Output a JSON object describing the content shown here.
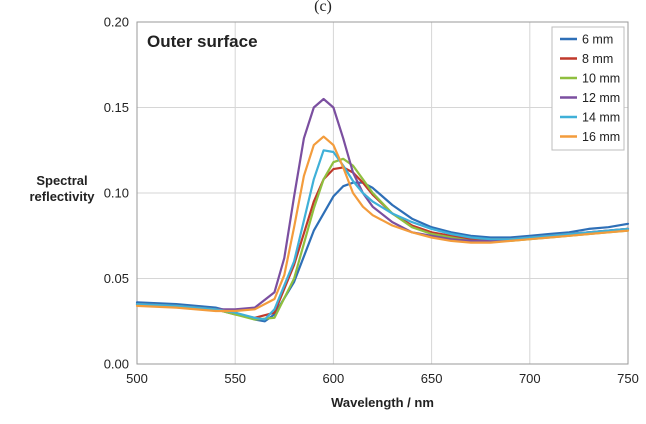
{
  "top_caption": "(c)",
  "chart_data": {
    "type": "line",
    "title": "Outer surface",
    "xlabel": "Wavelength / nm",
    "ylabel_lines": [
      "Spectral",
      "reflectivity"
    ],
    "xlim": [
      500,
      750
    ],
    "ylim": [
      0,
      0.2
    ],
    "x_ticks": [
      "500",
      "550",
      "600",
      "650",
      "700",
      "750"
    ],
    "y_ticks": [
      "0.00",
      "0.05",
      "0.10",
      "0.15",
      "0.20"
    ],
    "grid": true,
    "legend_position": "top-right",
    "series": [
      {
        "name": "6 mm",
        "color": "#2e6fb7",
        "x": [
          500,
          520,
          540,
          550,
          560,
          565,
          570,
          580,
          590,
          600,
          605,
          610,
          615,
          620,
          630,
          640,
          650,
          660,
          670,
          680,
          690,
          700,
          710,
          720,
          730,
          740,
          750
        ],
        "y": [
          0.036,
          0.035,
          0.033,
          0.03,
          0.026,
          0.025,
          0.029,
          0.048,
          0.078,
          0.098,
          0.104,
          0.106,
          0.106,
          0.103,
          0.093,
          0.085,
          0.08,
          0.077,
          0.075,
          0.074,
          0.074,
          0.075,
          0.076,
          0.077,
          0.079,
          0.08,
          0.082
        ]
      },
      {
        "name": "8 mm",
        "color": "#c0392b",
        "x": [
          500,
          520,
          540,
          550,
          560,
          570,
          580,
          590,
          595,
          600,
          605,
          610,
          615,
          620,
          630,
          640,
          650,
          660,
          670,
          680,
          690,
          700,
          710,
          720,
          730,
          740,
          750
        ],
        "y": [
          0.035,
          0.034,
          0.032,
          0.029,
          0.027,
          0.03,
          0.058,
          0.095,
          0.108,
          0.114,
          0.115,
          0.112,
          0.106,
          0.099,
          0.088,
          0.081,
          0.077,
          0.075,
          0.073,
          0.073,
          0.073,
          0.074,
          0.075,
          0.076,
          0.077,
          0.078,
          0.079
        ]
      },
      {
        "name": "10 mm",
        "color": "#8fbf3f",
        "x": [
          500,
          520,
          540,
          550,
          560,
          570,
          580,
          590,
          595,
          600,
          605,
          610,
          615,
          620,
          630,
          640,
          650,
          660,
          670,
          680,
          690,
          700,
          710,
          720,
          730,
          740,
          750
        ],
        "y": [
          0.035,
          0.034,
          0.032,
          0.029,
          0.026,
          0.027,
          0.05,
          0.091,
          0.108,
          0.118,
          0.12,
          0.116,
          0.108,
          0.1,
          0.088,
          0.08,
          0.076,
          0.074,
          0.072,
          0.072,
          0.072,
          0.073,
          0.074,
          0.075,
          0.076,
          0.077,
          0.078
        ]
      },
      {
        "name": "12 mm",
        "color": "#7b4fa0",
        "x": [
          500,
          520,
          540,
          550,
          560,
          570,
          575,
          580,
          585,
          590,
          595,
          600,
          605,
          610,
          615,
          620,
          630,
          640,
          650,
          660,
          670,
          680,
          690,
          700,
          710,
          720,
          730,
          740,
          750
        ],
        "y": [
          0.035,
          0.034,
          0.032,
          0.032,
          0.033,
          0.042,
          0.062,
          0.098,
          0.132,
          0.15,
          0.155,
          0.15,
          0.132,
          0.112,
          0.1,
          0.092,
          0.083,
          0.077,
          0.075,
          0.073,
          0.072,
          0.072,
          0.073,
          0.074,
          0.075,
          0.076,
          0.077,
          0.078,
          0.079
        ]
      },
      {
        "name": "14 mm",
        "color": "#3fb0d8",
        "x": [
          500,
          520,
          540,
          550,
          560,
          565,
          570,
          580,
          590,
          595,
          600,
          605,
          610,
          615,
          620,
          630,
          640,
          650,
          660,
          670,
          680,
          690,
          700,
          710,
          720,
          730,
          740,
          750
        ],
        "y": [
          0.035,
          0.034,
          0.032,
          0.03,
          0.027,
          0.026,
          0.032,
          0.06,
          0.108,
          0.125,
          0.124,
          0.116,
          0.107,
          0.1,
          0.095,
          0.088,
          0.083,
          0.079,
          0.076,
          0.074,
          0.073,
          0.073,
          0.074,
          0.075,
          0.076,
          0.077,
          0.078,
          0.079
        ]
      },
      {
        "name": "16 mm",
        "color": "#f39c3c",
        "x": [
          500,
          520,
          540,
          550,
          560,
          570,
          575,
          580,
          585,
          590,
          595,
          600,
          605,
          610,
          615,
          620,
          630,
          640,
          650,
          660,
          670,
          680,
          690,
          700,
          710,
          720,
          730,
          740,
          750
        ],
        "y": [
          0.034,
          0.033,
          0.031,
          0.031,
          0.032,
          0.038,
          0.052,
          0.08,
          0.11,
          0.128,
          0.133,
          0.128,
          0.115,
          0.1,
          0.092,
          0.087,
          0.081,
          0.077,
          0.074,
          0.072,
          0.071,
          0.071,
          0.072,
          0.073,
          0.074,
          0.075,
          0.076,
          0.077,
          0.078
        ]
      }
    ]
  }
}
